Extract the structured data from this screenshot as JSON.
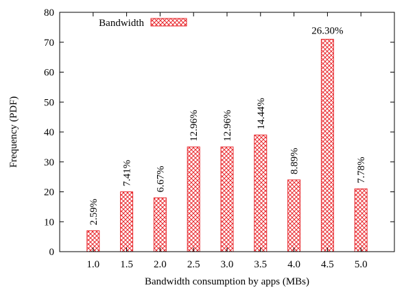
{
  "chart_data": {
    "type": "bar",
    "xlabel": "Bandwidth consumption by apps (MBs)",
    "ylabel": "Frequency (PDF)",
    "categories": [
      "1.0",
      "1.5",
      "2.0",
      "2.5",
      "3.0",
      "3.5",
      "4.0",
      "4.5",
      "5.0"
    ],
    "series": [
      {
        "name": "Bandwidth",
        "values": [
          7,
          20,
          18,
          35,
          35,
          39,
          24,
          71,
          21
        ],
        "labels": [
          "2.59%",
          "7.41%",
          "6.67%",
          "12.96%",
          "12.96%",
          "14.44%",
          "8.89%",
          "26.30%",
          "7.78%"
        ]
      }
    ],
    "ylim": [
      0,
      80
    ],
    "yticks": [
      "0",
      "10",
      "20",
      "30",
      "40",
      "50",
      "60",
      "70",
      "80"
    ],
    "grid": false,
    "legend_position": "top-left",
    "bar_color": "#e8282d"
  }
}
